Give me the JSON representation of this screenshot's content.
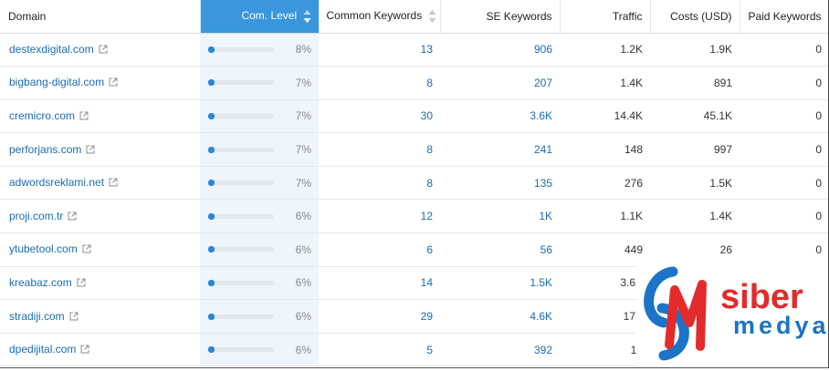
{
  "columns": {
    "domain": "Domain",
    "com_level": "Com. Level",
    "common_keywords": "Common Keywords",
    "se_keywords": "SE Keywords",
    "traffic": "Traffic",
    "costs": "Costs (USD)",
    "paid_keywords": "Paid Keywords"
  },
  "rows": [
    {
      "domain": "destexdigital.com",
      "level": 0.08,
      "level_text": "8%",
      "common": "13",
      "se": "906",
      "traffic": "1.2K",
      "costs": "1.9K",
      "paid": "0"
    },
    {
      "domain": "bigbang-digital.com",
      "level": 0.07,
      "level_text": "7%",
      "common": "8",
      "se": "207",
      "traffic": "1.4K",
      "costs": "891",
      "paid": "0"
    },
    {
      "domain": "cremicro.com",
      "level": 0.07,
      "level_text": "7%",
      "common": "30",
      "se": "3.6K",
      "traffic": "14.4K",
      "costs": "45.1K",
      "paid": "0"
    },
    {
      "domain": "perforjans.com",
      "level": 0.07,
      "level_text": "7%",
      "common": "8",
      "se": "241",
      "traffic": "148",
      "costs": "997",
      "paid": "0"
    },
    {
      "domain": "adwordsreklami.net",
      "level": 0.07,
      "level_text": "7%",
      "common": "8",
      "se": "135",
      "traffic": "276",
      "costs": "1.5K",
      "paid": "0"
    },
    {
      "domain": "proji.com.tr",
      "level": 0.06,
      "level_text": "6%",
      "common": "12",
      "se": "1K",
      "traffic": "1.1K",
      "costs": "1.4K",
      "paid": "0"
    },
    {
      "domain": "ytubetool.com",
      "level": 0.06,
      "level_text": "6%",
      "common": "6",
      "se": "56",
      "traffic": "449",
      "costs": "26",
      "paid": "0"
    },
    {
      "domain": "kreabaz.com",
      "level": 0.06,
      "level_text": "6%",
      "common": "14",
      "se": "1.5K",
      "traffic": "3.6K",
      "costs": "",
      "paid": ""
    },
    {
      "domain": "stradiji.com",
      "level": 0.06,
      "level_text": "6%",
      "common": "29",
      "se": "4.6K",
      "traffic": "17K",
      "costs": "",
      "paid": ""
    },
    {
      "domain": "dpedijital.com",
      "level": 0.06,
      "level_text": "6%",
      "common": "5",
      "se": "392",
      "traffic": "16",
      "costs": "",
      "paid": ""
    }
  ],
  "watermark": {
    "line1": "siber",
    "line2": "medya",
    "color_red": "#e32b2b",
    "color_blue": "#1b74c8",
    "icon": "siber-medya-logo"
  },
  "colors": {
    "accent": "#3a96dd",
    "link": "#1a6bb5",
    "bar_fill": "#2c86d6"
  }
}
